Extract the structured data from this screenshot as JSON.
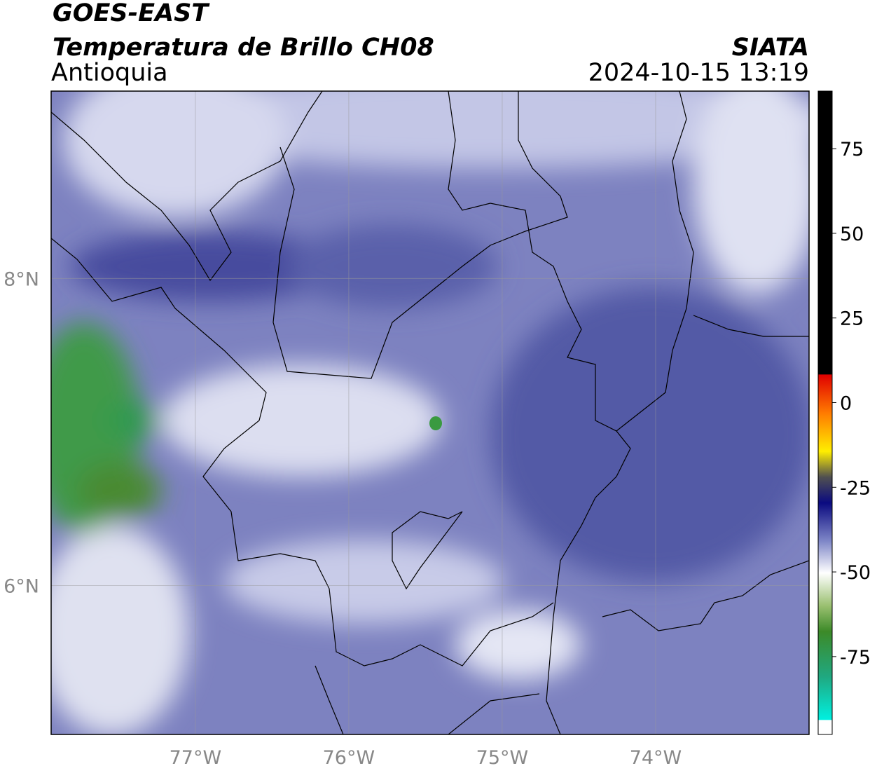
{
  "header": {
    "title": "GOES-EAST",
    "subtitle": "Temperatura de Brillo CH08",
    "region": "Antioquia",
    "source": "SIATA",
    "timestamp": "2024-10-15 13:19"
  },
  "map": {
    "xlim": [
      -77.94,
      -73.0
    ],
    "ylim": [
      5.03,
      9.22
    ],
    "xticks": [
      {
        "value": -77,
        "label": "77°W"
      },
      {
        "value": -76,
        "label": "76°W"
      },
      {
        "value": -75,
        "label": "75°W"
      },
      {
        "value": -74,
        "label": "74°W"
      }
    ],
    "yticks": [
      {
        "value": 8,
        "label": "8°N"
      },
      {
        "value": 6,
        "label": "6°N"
      }
    ],
    "grid": true
  },
  "colorbar": {
    "ylim": [
      -98,
      92
    ],
    "yticks": [
      75,
      50,
      25,
      0,
      -25,
      -50,
      -75
    ]
  }
}
